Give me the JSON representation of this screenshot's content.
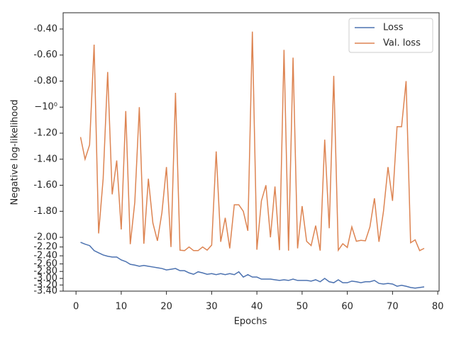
{
  "chart_data": {
    "type": "line",
    "xlabel": "Epochs",
    "ylabel": "Negative log-likelihood",
    "x": [
      1,
      2,
      3,
      4,
      5,
      6,
      7,
      8,
      9,
      10,
      11,
      12,
      13,
      14,
      15,
      16,
      17,
      18,
      19,
      20,
      21,
      22,
      23,
      24,
      25,
      26,
      27,
      28,
      29,
      30,
      31,
      32,
      33,
      34,
      35,
      36,
      37,
      38,
      39,
      40,
      41,
      42,
      43,
      44,
      45,
      46,
      47,
      48,
      49,
      50,
      51,
      52,
      53,
      54,
      55,
      56,
      57,
      58,
      59,
      60,
      61,
      62,
      63,
      64,
      65,
      66,
      67,
      68,
      69,
      70,
      71,
      72,
      73,
      74,
      75,
      76,
      77
    ],
    "series": [
      {
        "name": "Loss",
        "color": "#4c72b0",
        "values": [
          -2.1,
          -2.14,
          -2.17,
          -2.28,
          -2.33,
          -2.38,
          -2.41,
          -2.43,
          -2.43,
          -2.5,
          -2.54,
          -2.61,
          -2.63,
          -2.66,
          -2.64,
          -2.66,
          -2.68,
          -2.7,
          -2.72,
          -2.76,
          -2.74,
          -2.72,
          -2.78,
          -2.78,
          -2.84,
          -2.88,
          -2.81,
          -2.84,
          -2.88,
          -2.86,
          -2.89,
          -2.86,
          -2.89,
          -2.86,
          -2.89,
          -2.81,
          -2.96,
          -2.89,
          -2.96,
          -2.96,
          -3.02,
          -3.02,
          -3.02,
          -3.04,
          -3.06,
          -3.04,
          -3.06,
          -3.02,
          -3.06,
          -3.06,
          -3.06,
          -3.08,
          -3.04,
          -3.1,
          -3.0,
          -3.1,
          -3.13,
          -3.04,
          -3.13,
          -3.13,
          -3.08,
          -3.1,
          -3.13,
          -3.1,
          -3.1,
          -3.06,
          -3.15,
          -3.17,
          -3.15,
          -3.17,
          -3.24,
          -3.21,
          -3.24,
          -3.28,
          -3.3,
          -3.28,
          -3.26
        ]
      },
      {
        "name": "Val. loss",
        "color": "#dd8452",
        "values": [
          -1.23,
          -1.4,
          -1.29,
          -0.52,
          -1.97,
          -1.55,
          -0.73,
          -1.67,
          -1.41,
          -1.94,
          -1.03,
          -2.14,
          -1.73,
          -1.0,
          -2.13,
          -1.55,
          -1.89,
          -2.07,
          -1.81,
          -1.46,
          -2.2,
          -0.89,
          -2.27,
          -2.28,
          -2.2,
          -2.28,
          -2.28,
          -2.2,
          -2.27,
          -2.16,
          -1.34,
          -2.09,
          -1.85,
          -2.23,
          -1.75,
          -1.75,
          -1.8,
          -1.95,
          -0.42,
          -2.26,
          -1.72,
          -1.6,
          -2.0,
          -1.61,
          -2.27,
          -0.56,
          -2.28,
          -0.62,
          -2.23,
          -1.76,
          -2.08,
          -2.17,
          -1.91,
          -2.28,
          -1.25,
          -1.93,
          -0.76,
          -2.27,
          -2.13,
          -2.21,
          -1.92,
          -2.08,
          -2.06,
          -2.07,
          -1.92,
          -1.7,
          -2.09,
          -1.8,
          -1.46,
          -1.72,
          -1.15,
          -1.15,
          -0.8,
          -2.11,
          -2.05,
          -2.28,
          -2.23
        ]
      }
    ],
    "xlim": [
      -2.85,
      80.3
    ],
    "xticks": [
      0,
      10,
      20,
      30,
      40,
      50,
      60,
      70,
      80
    ],
    "ylim": [
      -3.4,
      -0.275
    ],
    "yscale": "symlog",
    "linthresh": 2,
    "yticks": [
      {
        "value": -0.4,
        "label": "-0.40"
      },
      {
        "value": -0.6,
        "label": "-0.60"
      },
      {
        "value": -0.8,
        "label": "-0.80"
      },
      {
        "value": -1,
        "label": "−10⁰"
      },
      {
        "value": -1.2,
        "label": "-1.20"
      },
      {
        "value": -1.4,
        "label": "-1.40"
      },
      {
        "value": -1.6,
        "label": "-1.60"
      },
      {
        "value": -1.8,
        "label": "-1.80"
      },
      {
        "value": -2.0,
        "label": "-2.00"
      },
      {
        "value": -2.2,
        "label": "-2.20"
      },
      {
        "value": -2.4,
        "label": "-2.40"
      },
      {
        "value": -2.6,
        "label": "-2.60"
      },
      {
        "value": -2.8,
        "label": "-2.80"
      },
      {
        "value": -3.0,
        "label": "-3.00"
      },
      {
        "value": -3.2,
        "label": "-3.20"
      },
      {
        "value": -3.4,
        "label": "-3.40"
      }
    ],
    "legend": "upper right"
  }
}
